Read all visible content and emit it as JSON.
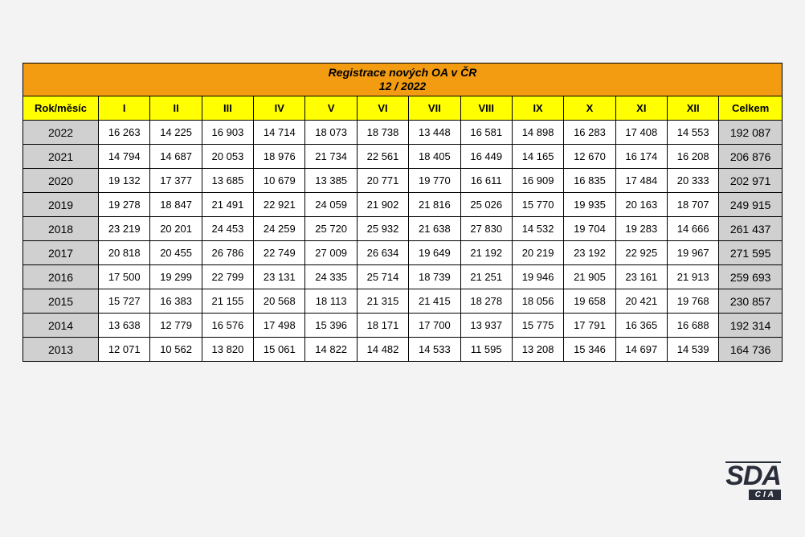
{
  "title_line1": "Registrace nových OA v ČR",
  "title_line2": "12 / 2022",
  "header_year": "Rok/měsíc",
  "header_months": [
    "I",
    "II",
    "III",
    "IV",
    "V",
    "VI",
    "VII",
    "VIII",
    "IX",
    "X",
    "XI",
    "XII"
  ],
  "header_total": "Celkem",
  "rows": [
    {
      "year": "2022",
      "values": [
        "16 263",
        "14 225",
        "16 903",
        "14 714",
        "18 073",
        "18 738",
        "13 448",
        "16 581",
        "14 898",
        "16 283",
        "17 408",
        "14 553"
      ],
      "total": "192 087"
    },
    {
      "year": "2021",
      "values": [
        "14 794",
        "14 687",
        "20 053",
        "18 976",
        "21 734",
        "22 561",
        "18 405",
        "16 449",
        "14 165",
        "12 670",
        "16 174",
        "16 208"
      ],
      "total": "206 876"
    },
    {
      "year": "2020",
      "values": [
        "19 132",
        "17 377",
        "13 685",
        "10 679",
        "13 385",
        "20 771",
        "19 770",
        "16 611",
        "16 909",
        "16 835",
        "17 484",
        "20 333"
      ],
      "total": "202 971"
    },
    {
      "year": "2019",
      "values": [
        "19 278",
        "18 847",
        "21 491",
        "22 921",
        "24 059",
        "21 902",
        "21 816",
        "25 026",
        "15 770",
        "19 935",
        "20 163",
        "18 707"
      ],
      "total": "249 915"
    },
    {
      "year": "2018",
      "values": [
        "23 219",
        "20 201",
        "24 453",
        "24 259",
        "25 720",
        "25 932",
        "21 638",
        "27 830",
        "14 532",
        "19 704",
        "19 283",
        "14 666"
      ],
      "total": "261 437"
    },
    {
      "year": "2017",
      "values": [
        "20 818",
        "20 455",
        "26 786",
        "22 749",
        "27 009",
        "26 634",
        "19 649",
        "21 192",
        "20 219",
        "23 192",
        "22 925",
        "19 967"
      ],
      "total": "271 595"
    },
    {
      "year": "2016",
      "values": [
        "17 500",
        "19 299",
        "22 799",
        "23 131",
        "24 335",
        "25 714",
        "18 739",
        "21 251",
        "19 946",
        "21 905",
        "23 161",
        "21 913"
      ],
      "total": "259 693"
    },
    {
      "year": "2015",
      "values": [
        "15 727",
        "16 383",
        "21 155",
        "20 568",
        "18 113",
        "21 315",
        "21 415",
        "18 278",
        "18 056",
        "19 658",
        "20 421",
        "19 768"
      ],
      "total": "230 857"
    },
    {
      "year": "2014",
      "values": [
        "13 638",
        "12 779",
        "16 576",
        "17 498",
        "15 396",
        "18 171",
        "17 700",
        "13 937",
        "15 775",
        "17 791",
        "16 365",
        "16 688"
      ],
      "total": "192 314"
    },
    {
      "year": "2013",
      "values": [
        "12 071",
        "10 562",
        "13 820",
        "15 061",
        "14 822",
        "14 482",
        "14 533",
        "11 595",
        "13 208",
        "15 346",
        "14 697",
        "14 539"
      ],
      "total": "164 736"
    }
  ],
  "logo": {
    "main": "SDA",
    "sub": "CIA"
  },
  "style": {
    "title_bg": "#f39c12",
    "header_bg": "#ffff00",
    "shade_bg": "#d0d0d0",
    "data_bg": "#ffffff",
    "border_color": "#000000",
    "page_bg": "#f3f3f3",
    "font_size_title": 14,
    "font_size_header": 13,
    "font_size_data": 13,
    "logo_color": "#2a2e3a"
  }
}
